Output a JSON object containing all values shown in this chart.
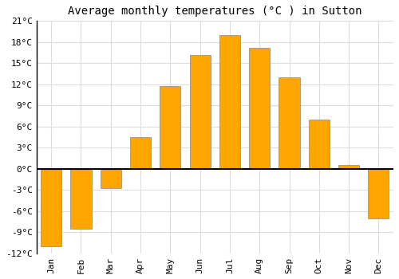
{
  "title": "Average monthly temperatures (°C ) in Sutton",
  "months": [
    "Jan",
    "Feb",
    "Mar",
    "Apr",
    "May",
    "Jun",
    "Jul",
    "Aug",
    "Sep",
    "Oct",
    "Nov",
    "Dec"
  ],
  "values": [
    -11,
    -8.5,
    -2.7,
    4.5,
    11.8,
    16.2,
    19.0,
    17.2,
    13.0,
    7.0,
    0.5,
    -7.0
  ],
  "bar_color": "#FFA500",
  "bar_edge_color": "#888888",
  "ylim": [
    -12,
    21
  ],
  "yticks": [
    -12,
    -9,
    -6,
    -3,
    0,
    3,
    6,
    9,
    12,
    15,
    18,
    21
  ],
  "ytick_labels": [
    "-12°C",
    "-9°C",
    "-6°C",
    "-3°C",
    "0°C",
    "3°C",
    "6°C",
    "9°C",
    "12°C",
    "15°C",
    "18°C",
    "21°C"
  ],
  "grid_color": "#dddddd",
  "background_color": "#ffffff",
  "plot_background": "#ffffff",
  "zero_line_color": "#000000",
  "title_fontsize": 10,
  "tick_fontsize": 8,
  "font_family": "monospace"
}
